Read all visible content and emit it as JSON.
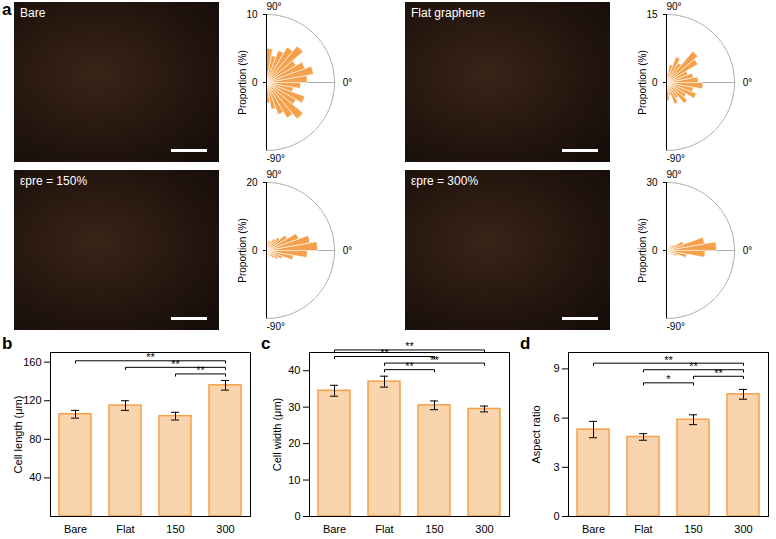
{
  "images": {
    "annotations": [
      "a"
    ],
    "labels": [
      "Bare",
      "Flat graphene",
      "εpre = 150%",
      "εpre = 300%"
    ]
  },
  "chart_data": [
    {
      "type": "polar_bar",
      "y_label": "Proportion (%)",
      "color": "#f5a04a",
      "bins": [
        -90,
        -80,
        -70,
        -60,
        -50,
        -40,
        -30,
        -20,
        -10,
        0,
        10,
        20,
        30,
        40,
        50,
        60,
        70,
        80,
        90
      ],
      "values": [
        3,
        4,
        5,
        6,
        7,
        5,
        6,
        4,
        5,
        6,
        7,
        6,
        5,
        7,
        6,
        5,
        4,
        5
      ],
      "xlim": [
        -90,
        90
      ],
      "xticks": [
        {
          "value": -90,
          "label": "-90°"
        },
        {
          "value": 0,
          "label": "0°"
        },
        {
          "value": 90,
          "label": "90°"
        }
      ],
      "ylim": [
        0,
        10
      ],
      "yticks": [
        0,
        10
      ]
    },
    {
      "type": "polar_bar",
      "y_label": "Proportion (%)",
      "color": "#f5a04a",
      "bins": [
        -90,
        -80,
        -70,
        -60,
        -50,
        -40,
        -30,
        -20,
        -10,
        0,
        10,
        20,
        30,
        40,
        50,
        60,
        70,
        80,
        90
      ],
      "values": [
        4,
        3,
        5,
        4,
        6,
        5,
        7,
        6,
        8,
        7,
        6,
        5,
        8,
        9,
        5,
        6,
        4,
        2
      ],
      "xlim": [
        -90,
        90
      ],
      "xticks": [
        {
          "value": -90,
          "label": "-90°"
        },
        {
          "value": 0,
          "label": "0°"
        },
        {
          "value": 90,
          "label": "90°"
        }
      ],
      "ylim": [
        0,
        15
      ],
      "yticks": [
        0,
        15
      ]
    },
    {
      "type": "polar_bar",
      "y_label": "Proportion (%)",
      "color": "#f5a04a",
      "bins": [
        -90,
        -80,
        -70,
        -60,
        -50,
        -40,
        -30,
        -20,
        -10,
        0,
        10,
        20,
        30,
        40,
        50,
        60,
        70,
        80,
        90
      ],
      "values": [
        1,
        1,
        2,
        2,
        3,
        4,
        5,
        8,
        12,
        15,
        13,
        10,
        7,
        5,
        4,
        3,
        3,
        2
      ],
      "xlim": [
        -90,
        90
      ],
      "xticks": [
        {
          "value": -90,
          "label": "-90°"
        },
        {
          "value": 0,
          "label": "0°"
        },
        {
          "value": 90,
          "label": "90°"
        }
      ],
      "ylim": [
        0,
        20
      ],
      "yticks": [
        0,
        20
      ]
    },
    {
      "type": "polar_bar",
      "y_label": "Proportion (%)",
      "color": "#f5a04a",
      "bins": [
        -90,
        -80,
        -70,
        -60,
        -50,
        -40,
        -30,
        -20,
        -10,
        0,
        10,
        20,
        30,
        40,
        50,
        60,
        70,
        80,
        90
      ],
      "values": [
        1,
        1,
        1,
        2,
        2,
        3,
        5,
        9,
        17,
        22,
        17,
        8,
        4,
        3,
        2,
        1,
        1,
        1
      ],
      "xlim": [
        -90,
        90
      ],
      "xticks": [
        {
          "value": -90,
          "label": "-90°"
        },
        {
          "value": 0,
          "label": "0°"
        },
        {
          "value": 90,
          "label": "90°"
        }
      ],
      "ylim": [
        0,
        30
      ],
      "yticks": [
        0,
        30
      ]
    },
    {
      "type": "bar",
      "annotations": [
        "b"
      ],
      "y_label": "Cell length (μm)",
      "color": "#f5a04a",
      "categories": [
        "Bare",
        "Flat",
        "150",
        "300"
      ],
      "values": [
        106,
        115,
        104,
        136
      ],
      "errors": [
        4,
        5,
        4,
        5
      ],
      "ylim": [
        0,
        170
      ],
      "yticks": [
        40,
        80,
        120,
        160
      ],
      "significance": [
        {
          "from": "150",
          "to": "300",
          "label": "**"
        },
        {
          "from": "Flat",
          "to": "300",
          "label": "**"
        },
        {
          "from": "Bare",
          "to": "300",
          "label": "**"
        }
      ]
    },
    {
      "type": "bar",
      "annotations": [
        "c"
      ],
      "y_label": "Cell width (μm)",
      "color": "#f5a04a",
      "categories": [
        "Bare",
        "Flat",
        "150",
        "300"
      ],
      "values": [
        34.5,
        37,
        30.5,
        29.5
      ],
      "errors": [
        1.5,
        1.5,
        1.2,
        0.8
      ],
      "ylim": [
        0,
        45
      ],
      "yticks": [
        0,
        10,
        20,
        30,
        40
      ],
      "significance": [
        {
          "from": "Flat",
          "to": "150",
          "label": "**"
        },
        {
          "from": "Flat",
          "to": "300",
          "label": "**"
        },
        {
          "from": "Bare",
          "to": "150",
          "label": "**"
        },
        {
          "from": "Bare",
          "to": "300",
          "label": "**"
        }
      ]
    },
    {
      "type": "bar",
      "annotations": [
        "d"
      ],
      "y_label": "Aspect ratio",
      "color": "#f5a04a",
      "categories": [
        "Bare",
        "Flat",
        "150",
        "300"
      ],
      "values": [
        5.3,
        4.85,
        5.9,
        7.45
      ],
      "errors": [
        0.5,
        0.2,
        0.3,
        0.3
      ],
      "ylim": [
        0,
        10
      ],
      "yticks": [
        0,
        3,
        6,
        9
      ],
      "significance": [
        {
          "from": "Flat",
          "to": "150",
          "label": "*"
        },
        {
          "from": "150",
          "to": "300",
          "label": "**"
        },
        {
          "from": "Flat",
          "to": "300",
          "label": "**"
        },
        {
          "from": "Bare",
          "to": "300",
          "label": "**"
        }
      ]
    }
  ]
}
